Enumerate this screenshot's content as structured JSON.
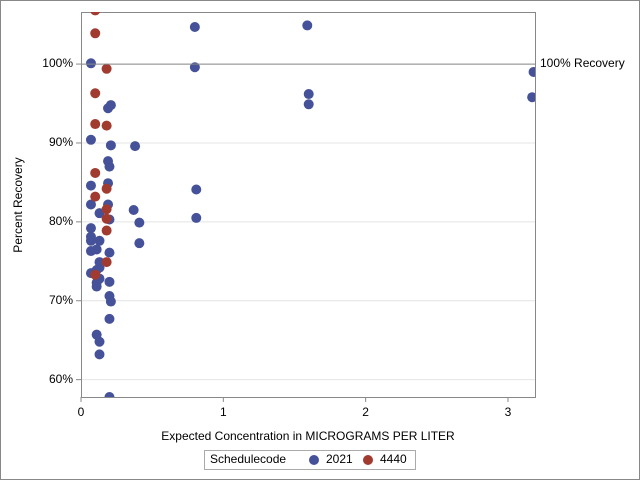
{
  "chart_data": {
    "type": "scatter",
    "x_label": "Expected Concentration in MICROGRAMS PER LITER",
    "y_label": "Percent Recovery",
    "xlim": [
      0,
      3.19
    ],
    "xticks": [
      0,
      1,
      2,
      3
    ],
    "ylim": [
      57.8,
      106.6
    ],
    "yticks": [
      {
        "value": 60,
        "label": "60%"
      },
      {
        "value": 70,
        "label": "70%"
      },
      {
        "value": 80,
        "label": "80%"
      },
      {
        "value": 90,
        "label": "90%"
      },
      {
        "value": 100,
        "label": "100%"
      }
    ],
    "grid": true,
    "reference_line": {
      "value": 100,
      "label": "100% Recovery"
    },
    "legend_title": "Schedulecode",
    "legend_position": "bottom",
    "series": [
      {
        "name": "2021",
        "color": "#45529a",
        "x": [
          0.07,
          0.8,
          1.59,
          0.8,
          3.18,
          1.6,
          1.6,
          3.17,
          0.21,
          0.19,
          0.07,
          0.38,
          0.21,
          0.19,
          0.2,
          0.19,
          0.07,
          0.81,
          0.07,
          0.19,
          0.37,
          0.13,
          0.81,
          0.2,
          0.41,
          0.07,
          0.07,
          0.07,
          0.13,
          0.41,
          0.07,
          0.11,
          0.2,
          0.13,
          0.13,
          0.11,
          0.07,
          0.13,
          0.2,
          0.11,
          0.11,
          0.2,
          0.21,
          0.2,
          0.11,
          0.13,
          0.13,
          0.2
        ],
        "y": [
          100.1,
          104.7,
          104.9,
          99.6,
          99.0,
          96.2,
          94.9,
          95.8,
          94.8,
          94.4,
          90.4,
          89.6,
          89.7,
          87.7,
          87.0,
          84.9,
          84.6,
          84.1,
          82.2,
          82.2,
          81.5,
          81.1,
          80.5,
          80.3,
          79.9,
          79.2,
          78.1,
          77.6,
          77.6,
          77.3,
          76.3,
          76.5,
          76.1,
          74.9,
          74.2,
          73.9,
          73.5,
          72.8,
          72.4,
          72.3,
          71.8,
          70.6,
          69.9,
          67.7,
          65.7,
          64.8,
          63.2,
          57.8
        ]
      },
      {
        "name": "4440",
        "color": "#a13b30",
        "x": [
          0.1,
          0.1,
          0.18,
          0.1,
          0.1,
          0.18,
          0.1,
          0.18,
          0.1,
          0.18,
          0.18,
          0.18,
          0.18,
          0.1
        ],
        "y": [
          106.8,
          103.9,
          99.4,
          96.3,
          92.4,
          92.2,
          86.2,
          84.2,
          83.2,
          81.6,
          80.4,
          78.9,
          74.9,
          73.3
        ]
      }
    ]
  }
}
